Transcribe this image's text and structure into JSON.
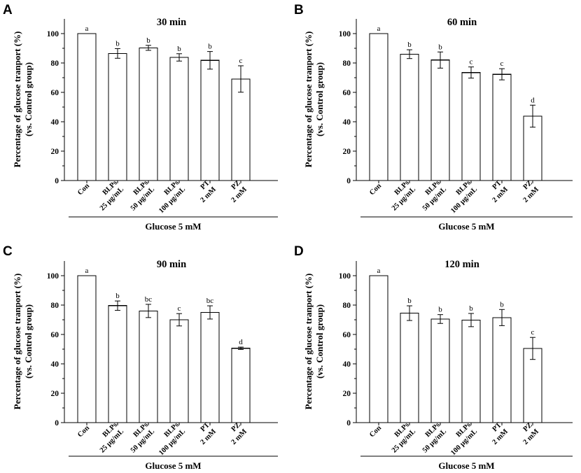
{
  "figure": {
    "panel_letters": [
      "A",
      "B",
      "C",
      "D"
    ]
  },
  "chart_data": [
    {
      "type": "bar",
      "panel": "A",
      "title": "30 min",
      "ylabel_line1": "Percentage of glucose tranport (%)",
      "ylabel_line2": "(vs. Control group)",
      "xlabel": "Glucose 5 mM",
      "ylim": [
        0,
        110
      ],
      "yticks": [
        0,
        20,
        40,
        60,
        80,
        100
      ],
      "grid": false,
      "categories": [
        [
          "Con"
        ],
        [
          "BLPs",
          "25 μg/mL"
        ],
        [
          "BLPs",
          "50 μg/mL"
        ],
        [
          "BLPs",
          "100 μg/mL"
        ],
        [
          "PT",
          "2 mM"
        ],
        [
          "PZ",
          "2 mM"
        ]
      ],
      "values": [
        100,
        86.5,
        90.3,
        83.8,
        81.8,
        69.1
      ],
      "errors": [
        0,
        3.3,
        1.7,
        2.5,
        6.0,
        9.0
      ],
      "significance": [
        "a",
        "b",
        "b",
        "b",
        "b",
        "c"
      ]
    },
    {
      "type": "bar",
      "panel": "B",
      "title": "60 min",
      "ylabel_line1": "Percentage of glucose tranport (%)",
      "ylabel_line2": "(vs. Control group)",
      "xlabel": "Glucose 5 mM",
      "ylim": [
        0,
        110
      ],
      "yticks": [
        0,
        20,
        40,
        60,
        80,
        100
      ],
      "grid": false,
      "categories": [
        [
          "Con"
        ],
        [
          "BLPs",
          "25 μg/mL"
        ],
        [
          "BLPs",
          "50 μg/mL"
        ],
        [
          "BLPs",
          "100 μg/mL"
        ],
        [
          "PT",
          "2 mM"
        ],
        [
          "PZ",
          "2 mM"
        ]
      ],
      "values": [
        100,
        86.0,
        82.0,
        73.5,
        72.3,
        43.8
      ],
      "errors": [
        0,
        3.0,
        5.5,
        3.8,
        3.8,
        7.5
      ],
      "significance": [
        "a",
        "b",
        "b",
        "c",
        "c",
        "d"
      ]
    },
    {
      "type": "bar",
      "panel": "C",
      "title": "90 min",
      "ylabel_line1": "Percentage of glucose tranport (%)",
      "ylabel_line2": "(vs. Control group)",
      "xlabel": "Glucose 5 mM",
      "ylim": [
        0,
        110
      ],
      "yticks": [
        0,
        20,
        40,
        60,
        80,
        100
      ],
      "grid": false,
      "categories": [
        [
          "Con"
        ],
        [
          "BLPs",
          "25 μg/mL"
        ],
        [
          "BLPs",
          "50 μg/mL"
        ],
        [
          "BLPs",
          "100 μg/mL"
        ],
        [
          "PT",
          "2 mM"
        ],
        [
          "PZ",
          "2 mM"
        ]
      ],
      "values": [
        100,
        79.6,
        76.0,
        70.0,
        75.0,
        50.6
      ],
      "errors": [
        0,
        3.2,
        4.5,
        4.2,
        4.5,
        0.8
      ],
      "significance": [
        "a",
        "b",
        "bc",
        "c",
        "bc",
        "d"
      ]
    },
    {
      "type": "bar",
      "panel": "D",
      "title": "120 min",
      "ylabel_line1": "Percentage of glucose tranport (%)",
      "ylabel_line2": "(vs. Control group)",
      "xlabel": "Glucose 5 mM",
      "ylim": [
        0,
        110
      ],
      "yticks": [
        0,
        20,
        40,
        60,
        80,
        100
      ],
      "grid": false,
      "categories": [
        [
          "Con"
        ],
        [
          "BLPs",
          "25 μg/mL"
        ],
        [
          "BLPs",
          "50 μg/mL"
        ],
        [
          "BLPs",
          "100 μg/mL"
        ],
        [
          "PT",
          "2 mM"
        ],
        [
          "PZ",
          "2 mM"
        ]
      ],
      "values": [
        100,
        74.5,
        70.5,
        69.8,
        71.5,
        50.5
      ],
      "errors": [
        0,
        5.0,
        3.0,
        4.5,
        5.5,
        7.5
      ],
      "significance": [
        "a",
        "b",
        "b",
        "b",
        "b",
        "c"
      ]
    }
  ]
}
